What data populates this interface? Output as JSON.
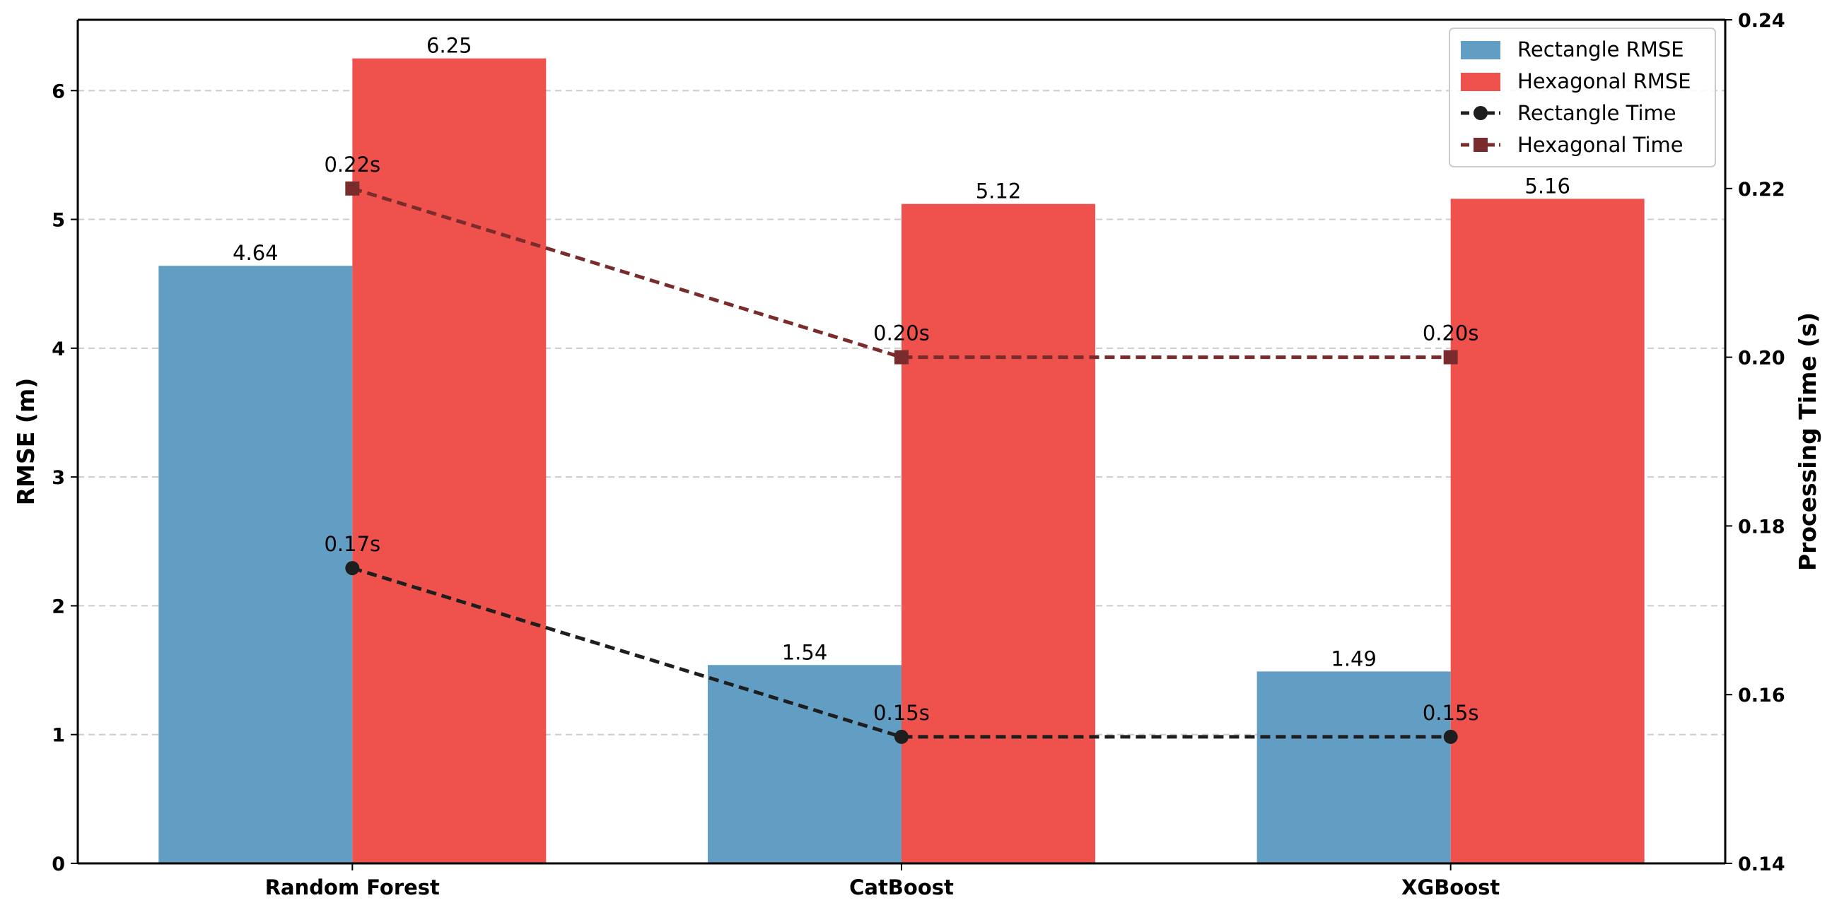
{
  "chart_data": {
    "type": "bar",
    "categories": [
      "Random Forest",
      "CatBoost",
      "XGBoost"
    ],
    "series": [
      {
        "name": "Rectangle RMSE",
        "kind": "bar",
        "axis": "left",
        "color": "#629ec4",
        "values": [
          4.64,
          1.54,
          1.49
        ],
        "labels": [
          "4.64",
          "1.54",
          "1.49"
        ]
      },
      {
        "name": "Hexagonal RMSE",
        "kind": "bar",
        "axis": "left",
        "color": "#ef524c",
        "values": [
          6.25,
          5.12,
          5.16
        ],
        "labels": [
          "6.25",
          "5.12",
          "5.16"
        ]
      },
      {
        "name": "Rectangle Time",
        "kind": "line",
        "axis": "right",
        "marker": "circle",
        "color": "#1e1e1e",
        "values": [
          0.175,
          0.155,
          0.155
        ],
        "labels": [
          "0.17s",
          "0.15s",
          "0.15s"
        ]
      },
      {
        "name": "Hexagonal Time",
        "kind": "line",
        "axis": "right",
        "marker": "square",
        "color": "#7a2c2c",
        "values": [
          0.22,
          0.2,
          0.2
        ],
        "labels": [
          "0.22s",
          "0.20s",
          "0.20s"
        ]
      }
    ],
    "ylabel": "RMSE (m)",
    "y2label": "Processing Time (s)",
    "ylim": [
      0,
      6.55
    ],
    "y2lim": [
      0.14,
      0.24
    ],
    "yticks": [
      "0",
      "1",
      "2",
      "3",
      "4",
      "5",
      "6"
    ],
    "y2ticks": [
      "0.14",
      "0.16",
      "0.18",
      "0.20",
      "0.22",
      "0.24"
    ],
    "grid": "horizontal dashed",
    "legend_position": "top-right"
  }
}
